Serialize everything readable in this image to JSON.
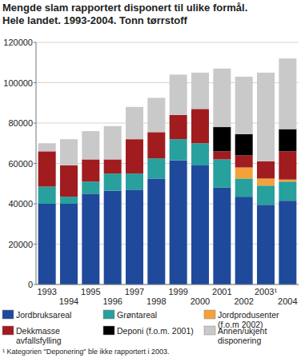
{
  "chart_data": {
    "type": "bar",
    "stacked": true,
    "grid": true,
    "legend": "bottom",
    "title": "Mengde slam rapportert disponert til ulike formål. Hele landet. 1993-2004. Tonn tørrstoff",
    "footnote": "¹ Kategorien \"Deponering\" ble ikke rapportert i 2003.",
    "categories": [
      "1993",
      "1994",
      "1995",
      "1996",
      "1997",
      "1998",
      "1999",
      "2000",
      "2001",
      "2002",
      "2003¹",
      "2004"
    ],
    "ylim": [
      0,
      120000
    ],
    "yticks": [
      0,
      20000,
      40000,
      60000,
      80000,
      100000,
      120000
    ],
    "series": [
      {
        "name": "Jordbruksareal",
        "color": "#1f4a9b",
        "values": [
          40000,
          40000,
          45000,
          46500,
          47000,
          52500,
          61500,
          59000,
          48000,
          43500,
          39500,
          41500
        ]
      },
      {
        "name": "Grøntareal",
        "color": "#28a09d",
        "values": [
          8500,
          3500,
          6000,
          8500,
          8000,
          10000,
          10500,
          11000,
          14000,
          9000,
          9500,
          9500
        ]
      },
      {
        "name": "Jordprodusenter (f.o.m 2002)",
        "color": "#f4a13b",
        "values": [
          0,
          0,
          0,
          0,
          0,
          0,
          0,
          0,
          0,
          5500,
          3500,
          1000
        ]
      },
      {
        "name": "Dekkmasse avfallsfylling",
        "color": "#a01c1f",
        "values": [
          17500,
          15500,
          11000,
          7000,
          17000,
          13000,
          12000,
          17000,
          4000,
          6000,
          8500,
          14000
        ]
      },
      {
        "name": "Deponi (f.o.m. 2001)",
        "color": "#000000",
        "values": [
          0,
          0,
          0,
          0,
          0,
          0,
          0,
          0,
          12000,
          10500,
          0,
          11000
        ]
      },
      {
        "name": "Annen/ukjent disponering",
        "color": "#c9c9c9",
        "values": [
          4000,
          13000,
          14000,
          16500,
          16000,
          17000,
          20000,
          18000,
          29000,
          28500,
          44000,
          35000
        ]
      }
    ]
  }
}
